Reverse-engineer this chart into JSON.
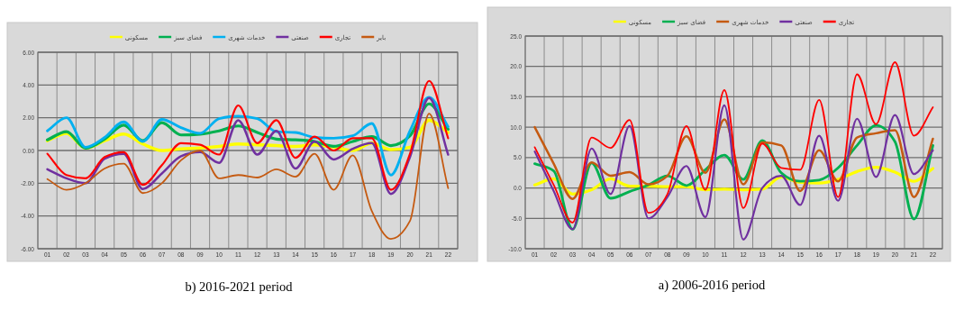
{
  "chart_data": [
    {
      "type": "line",
      "title": "b) 2016-2021 period",
      "legend": "top",
      "grid": true,
      "categories": [
        "01",
        "02",
        "03",
        "04",
        "05",
        "06",
        "07",
        "08",
        "09",
        "10",
        "11",
        "12",
        "13",
        "14",
        "15",
        "16",
        "17",
        "18",
        "19",
        "20",
        "21",
        "22"
      ],
      "ylim": [
        -6,
        6
      ],
      "yticks": [
        {
          "value": -6,
          "label": "-6.00"
        },
        {
          "value": -4,
          "label": "-4.00"
        },
        {
          "value": -2,
          "label": "-2.00"
        },
        {
          "value": 0,
          "label": "0.00"
        },
        {
          "value": 2,
          "label": "2.00"
        },
        {
          "value": 4,
          "label": "4.00"
        },
        {
          "value": 6,
          "label": "6.00"
        }
      ],
      "series": [
        {
          "name": "مسکونی",
          "color": "#ffff00",
          "values": [
            0.6,
            1.05,
            0.15,
            0.6,
            1.0,
            0.4,
            0.0,
            0.1,
            0.15,
            0.25,
            0.4,
            0.35,
            0.3,
            0.25,
            0.35,
            0.2,
            0.0,
            0.45,
            0.05,
            0.2,
            1.85,
            1.1
          ]
        },
        {
          "name": "فضای سبز",
          "color": "#00b050",
          "values": [
            0.65,
            1.15,
            0.15,
            0.7,
            1.55,
            0.6,
            1.7,
            0.95,
            1.0,
            1.2,
            1.5,
            1.1,
            0.7,
            0.65,
            0.55,
            0.25,
            0.55,
            0.85,
            0.3,
            0.9,
            2.85,
            1.3
          ]
        },
        {
          "name": "خدمات شهری",
          "color": "#00b0f0",
          "values": [
            1.2,
            2.0,
            0.2,
            0.8,
            1.75,
            0.55,
            1.9,
            1.4,
            1.05,
            1.95,
            2.1,
            1.95,
            1.15,
            1.1,
            0.8,
            0.75,
            0.9,
            1.65,
            -1.5,
            1.2,
            3.25,
            1.45
          ]
        },
        {
          "name": "صنعتی",
          "color": "#7030a0",
          "values": [
            -1.15,
            -1.7,
            -2.0,
            -0.5,
            -0.2,
            -2.35,
            -1.4,
            -0.35,
            -0.1,
            -0.75,
            1.85,
            -0.25,
            1.2,
            -1.1,
            0.55,
            -0.55,
            0.1,
            0.45,
            -2.65,
            -0.4,
            3.2,
            -0.25
          ]
        },
        {
          "name": "تجاری",
          "color": "#ff0000",
          "values": [
            -0.2,
            -1.5,
            -1.7,
            -0.4,
            -0.1,
            -2.1,
            -0.9,
            0.45,
            0.35,
            -0.25,
            2.75,
            0.45,
            1.85,
            -0.45,
            0.85,
            0.0,
            0.75,
            0.75,
            -2.4,
            -0.2,
            4.25,
            0.75
          ]
        },
        {
          "name": "بایر",
          "color": "#c55a11",
          "values": [
            -1.75,
            -2.4,
            -2.0,
            -1.1,
            -0.8,
            -2.6,
            -2.0,
            -0.6,
            0.0,
            -1.7,
            -1.5,
            -1.65,
            -1.15,
            -1.6,
            -0.2,
            -2.4,
            -0.3,
            -3.7,
            -5.4,
            -4.3,
            2.25,
            -2.3
          ]
        }
      ]
    },
    {
      "type": "line",
      "title": "a) 2006-2016 period",
      "legend": "top",
      "grid": true,
      "categories": [
        "01",
        "02",
        "03",
        "04",
        "05",
        "06",
        "07",
        "08",
        "09",
        "10",
        "11",
        "12",
        "13",
        "14",
        "15",
        "16",
        "17",
        "18",
        "19",
        "20",
        "21",
        "22"
      ],
      "ylim": [
        -10,
        25
      ],
      "yticks": [
        {
          "value": -10,
          "label": "-10.0"
        },
        {
          "value": -5,
          "label": "-5.0"
        },
        {
          "value": 0,
          "label": "0.0"
        },
        {
          "value": 5,
          "label": "5.0"
        },
        {
          "value": 10,
          "label": "10.0"
        },
        {
          "value": 15,
          "label": "15.0"
        },
        {
          "value": 20,
          "label": "20.0"
        },
        {
          "value": 25,
          "label": "25.0"
        }
      ],
      "series": [
        {
          "name": "مسکونی",
          "color": "#ffff00",
          "values": [
            0.5,
            1.5,
            -1.0,
            -0.3,
            1.5,
            0.3,
            0.3,
            0.2,
            0.2,
            -0.3,
            -0.2,
            -0.3,
            -0.2,
            1.8,
            0.9,
            0.8,
            1.4,
            2.7,
            3.4,
            2.6,
            1.1,
            3.2
          ]
        },
        {
          "name": "فضای سبز",
          "color": "#00b050",
          "values": [
            4.0,
            2.8,
            -6.8,
            4.1,
            -1.7,
            -0.6,
            0.5,
            2.0,
            0.4,
            3.0,
            5.4,
            1.4,
            7.8,
            2.5,
            1.1,
            1.3,
            3.3,
            7.0,
            10.3,
            7.6,
            -5.1,
            7.0
          ]
        },
        {
          "name": "خدمات شهری",
          "color": "#c55a11",
          "values": [
            10.0,
            4.0,
            -1.8,
            4.2,
            2.0,
            2.6,
            0.6,
            2.0,
            8.5,
            2.5,
            11.3,
            0.6,
            7.5,
            7.0,
            -0.5,
            6.2,
            1.1,
            8.3,
            9.0,
            9.5,
            -1.5,
            8.1
          ]
        },
        {
          "name": "صنعتی",
          "color": "#7030a0",
          "values": [
            6.0,
            -0.5,
            -6.8,
            6.5,
            -1.0,
            10.2,
            -5.0,
            -1.5,
            3.6,
            -4.8,
            13.6,
            -8.5,
            0.0,
            2.0,
            -2.8,
            8.6,
            -2.1,
            11.4,
            1.8,
            12.0,
            2.3,
            6.2
          ]
        },
        {
          "name": "تجاری",
          "color": "#ff0000",
          "values": [
            6.7,
            0.5,
            -5.7,
            8.3,
            6.6,
            11.2,
            -4.1,
            -1.0,
            10.2,
            -0.3,
            16.1,
            -3.3,
            7.3,
            3.3,
            3.0,
            14.5,
            -1.5,
            18.7,
            10.5,
            20.7,
            8.6,
            13.3
          ]
        }
      ]
    }
  ]
}
